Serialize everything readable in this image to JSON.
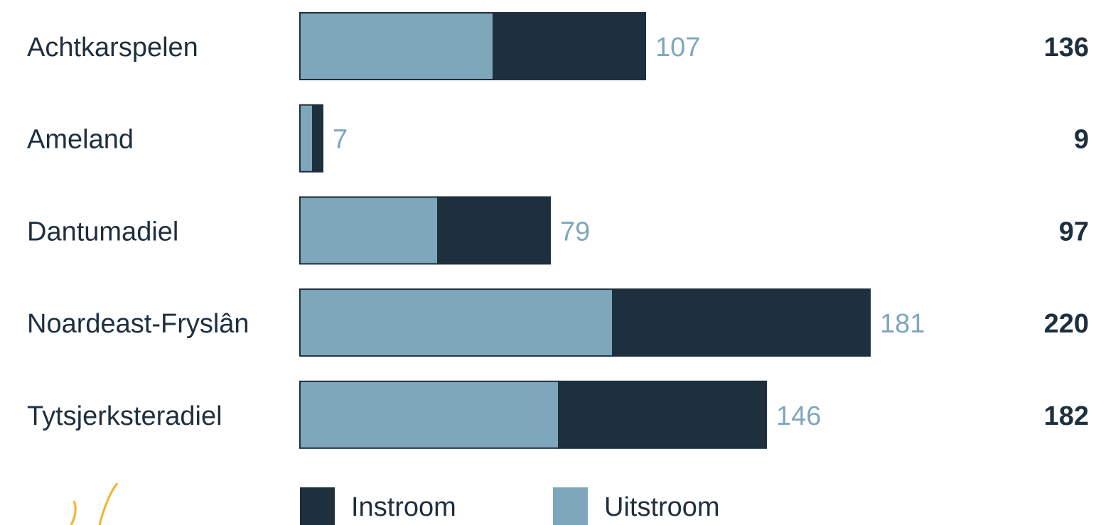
{
  "chart_data": {
    "type": "bar",
    "orientation": "horizontal",
    "stacked": true,
    "categories": [
      "Achtkarspelen",
      "Ameland",
      "Dantumadiel",
      "Noardeast-Fryslân",
      "Tytsjerksteradiel"
    ],
    "series": [
      {
        "name": "Instroom",
        "color": "#1e2f3e",
        "values": [
          107,
          7,
          79,
          181,
          146
        ]
      },
      {
        "name": "Uitstroom",
        "color": "#7fa7bb",
        "values": [
          136,
          9,
          97,
          220,
          182
        ]
      }
    ]
  }
}
